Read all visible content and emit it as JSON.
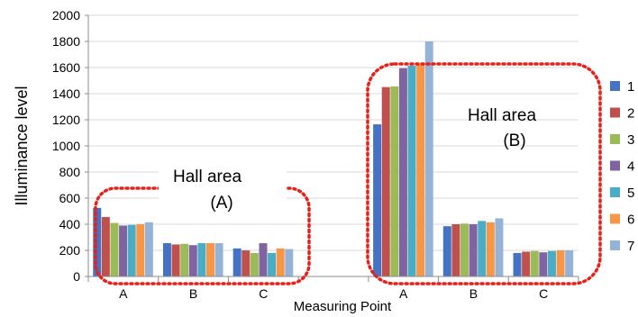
{
  "chart_data": {
    "type": "bar",
    "xlabel": "Measuring Point",
    "ylabel": "Illuminance  level",
    "ylim": [
      0,
      2000
    ],
    "yticks": [
      0,
      200,
      400,
      600,
      800,
      1000,
      1200,
      1400,
      1600,
      1800,
      2000
    ],
    "grid": true,
    "legend_position": "right",
    "categories": [
      "A",
      "B",
      "C",
      "",
      "A",
      "B",
      "C"
    ],
    "series": [
      {
        "name": "1",
        "color": "#4472c4",
        "values": [
          525,
          255,
          215,
          null,
          1165,
          385,
          180
        ]
      },
      {
        "name": "2",
        "color": "#c0504d",
        "values": [
          455,
          245,
          200,
          null,
          1450,
          400,
          190
        ]
      },
      {
        "name": "3",
        "color": "#9bbb59",
        "values": [
          410,
          250,
          180,
          null,
          1455,
          405,
          195
        ]
      },
      {
        "name": "4",
        "color": "#8064a2",
        "values": [
          390,
          240,
          255,
          null,
          1595,
          400,
          185
        ]
      },
      {
        "name": "5",
        "color": "#4bacc6",
        "values": [
          395,
          255,
          180,
          null,
          1615,
          425,
          195
        ]
      },
      {
        "name": "6",
        "color": "#f79646",
        "values": [
          400,
          255,
          215,
          null,
          1620,
          415,
          200
        ]
      },
      {
        "name": "7",
        "color": "#95b3d7",
        "values": [
          415,
          255,
          210,
          null,
          1800,
          445,
          200
        ]
      }
    ],
    "annotations": [
      {
        "id": "hall-a",
        "text": "Hall  area\n(A)"
      },
      {
        "id": "hall-b",
        "text": "Hall  area\n(B)"
      }
    ]
  }
}
